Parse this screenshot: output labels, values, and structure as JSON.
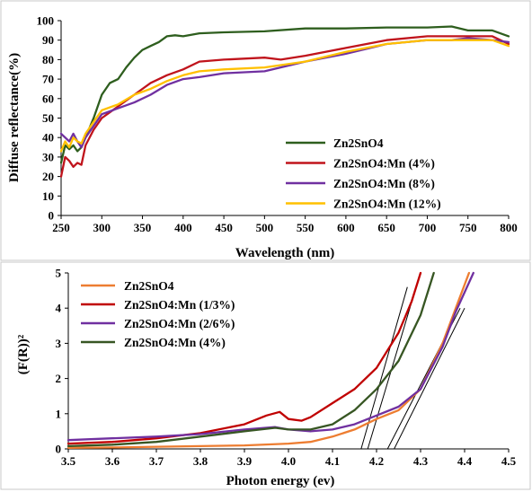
{
  "chart_data": [
    {
      "type": "line",
      "xlabel": "Wavelength (nm)",
      "ylabel": "Diffuse reflectance(%)",
      "xlim": [
        250,
        800
      ],
      "ylim": [
        0,
        100
      ],
      "xticks": [
        250,
        300,
        350,
        400,
        450,
        500,
        550,
        600,
        650,
        700,
        750,
        800
      ],
      "yticks": [
        0,
        10,
        20,
        30,
        40,
        50,
        60,
        70,
        80,
        90,
        100
      ],
      "grid": false,
      "legend_position": "bottom-right",
      "series": [
        {
          "name": "Zn2SnO4",
          "color": "#2e5e1e",
          "x": [
            250,
            255,
            260,
            265,
            270,
            275,
            280,
            290,
            300,
            310,
            320,
            330,
            340,
            350,
            360,
            370,
            380,
            390,
            400,
            420,
            450,
            500,
            550,
            600,
            650,
            700,
            730,
            750,
            780,
            800
          ],
          "y": [
            27,
            36,
            34,
            36,
            33,
            35,
            40,
            50,
            62,
            68,
            70,
            76,
            81,
            85,
            87,
            89,
            92,
            92.5,
            92,
            93.5,
            94,
            94.5,
            96,
            96,
            96.5,
            96.5,
            97,
            95,
            95,
            92
          ]
        },
        {
          "name": "Zn2SnO4:Mn (4%)",
          "color": "#c0141c",
          "x": [
            250,
            255,
            260,
            265,
            270,
            275,
            280,
            290,
            300,
            320,
            340,
            360,
            380,
            400,
            420,
            450,
            500,
            520,
            550,
            600,
            650,
            700,
            730,
            750,
            780,
            800
          ],
          "y": [
            20,
            30,
            28,
            25,
            27,
            26,
            36,
            44,
            50,
            56,
            62,
            68,
            72,
            75,
            79,
            80,
            81,
            80,
            82,
            86,
            90,
            92,
            92,
            92,
            92,
            88
          ]
        },
        {
          "name": "Zn2SnO4:Mn (8%)",
          "color": "#7030a0",
          "x": [
            250,
            255,
            260,
            265,
            270,
            275,
            280,
            290,
            300,
            320,
            340,
            360,
            380,
            400,
            420,
            450,
            500,
            550,
            600,
            650,
            700,
            730,
            750,
            780,
            800
          ],
          "y": [
            42,
            40,
            38,
            42,
            38,
            35,
            40,
            46,
            52,
            55,
            58,
            62,
            67,
            70,
            71,
            73,
            74,
            79,
            83,
            88,
            90,
            90,
            91,
            90,
            89
          ]
        },
        {
          "name": "Zn2SnO4:Mn (12%)",
          "color": "#ffc000",
          "x": [
            250,
            255,
            260,
            265,
            270,
            275,
            280,
            290,
            300,
            320,
            340,
            360,
            380,
            400,
            420,
            450,
            500,
            550,
            600,
            650,
            700,
            730,
            750,
            780,
            800
          ],
          "y": [
            33,
            38,
            35,
            40,
            38,
            37,
            42,
            48,
            54,
            57,
            62,
            65,
            69,
            72,
            74,
            75,
            76,
            79,
            84,
            88,
            90,
            90,
            90,
            90,
            87
          ]
        }
      ]
    },
    {
      "type": "line",
      "xlabel": "Photon energy (ev)",
      "ylabel": "(F(R))²",
      "xlim": [
        3.5,
        4.5
      ],
      "ylim": [
        0,
        5
      ],
      "xticks": [
        3.5,
        3.6,
        3.7,
        3.8,
        3.9,
        4.0,
        4.1,
        4.2,
        4.3,
        4.4,
        4.5
      ],
      "yticks": [
        0,
        1,
        2,
        3,
        4,
        5
      ],
      "grid": false,
      "legend_position": "top-left",
      "series": [
        {
          "name": "Zn2SnO4",
          "color": "#ed7d31",
          "x": [
            3.5,
            3.6,
            3.7,
            3.8,
            3.9,
            4.0,
            4.05,
            4.1,
            4.15,
            4.2,
            4.25,
            4.3,
            4.35,
            4.38,
            4.41
          ],
          "y": [
            0.03,
            0.04,
            0.06,
            0.08,
            0.1,
            0.15,
            0.2,
            0.35,
            0.55,
            0.85,
            1.1,
            1.7,
            3.0,
            4.0,
            5.0
          ]
        },
        {
          "name": "Zn2SnO4:Mn (1/3%)",
          "color": "#c00000",
          "x": [
            3.5,
            3.6,
            3.7,
            3.8,
            3.9,
            3.95,
            3.98,
            4.0,
            4.03,
            4.05,
            4.1,
            4.15,
            4.2,
            4.25,
            4.28,
            4.3
          ],
          "y": [
            0.15,
            0.2,
            0.3,
            0.45,
            0.7,
            0.95,
            1.05,
            0.85,
            0.8,
            0.9,
            1.3,
            1.7,
            2.3,
            3.3,
            4.2,
            5.0
          ]
        },
        {
          "name": "Zn2SnO4:Mn (2/6%)",
          "color": "#7030a0",
          "x": [
            3.5,
            3.6,
            3.7,
            3.8,
            3.9,
            3.97,
            4.0,
            4.05,
            4.1,
            4.15,
            4.2,
            4.25,
            4.3,
            4.35,
            4.38,
            4.42
          ],
          "y": [
            0.25,
            0.3,
            0.35,
            0.42,
            0.55,
            0.62,
            0.55,
            0.5,
            0.55,
            0.7,
            0.95,
            1.2,
            1.7,
            2.9,
            3.9,
            5.0
          ]
        },
        {
          "name": "Zn2SnO4:Mn (4%)",
          "color": "#375623",
          "x": [
            3.5,
            3.6,
            3.7,
            3.8,
            3.9,
            3.97,
            4.0,
            4.05,
            4.1,
            4.15,
            4.2,
            4.25,
            4.3,
            4.33
          ],
          "y": [
            0.08,
            0.12,
            0.2,
            0.35,
            0.5,
            0.6,
            0.55,
            0.55,
            0.7,
            1.1,
            1.7,
            2.5,
            3.8,
            5.0
          ]
        }
      ],
      "tangent_lines": [
        {
          "x": [
            4.165,
            4.27
          ],
          "y": [
            0,
            4.6
          ]
        },
        {
          "x": [
            4.18,
            4.29
          ],
          "y": [
            0,
            4.6
          ]
        },
        {
          "x": [
            4.225,
            4.39
          ],
          "y": [
            0,
            4.0
          ]
        },
        {
          "x": [
            4.24,
            4.4
          ],
          "y": [
            0,
            4.0
          ]
        }
      ]
    }
  ]
}
